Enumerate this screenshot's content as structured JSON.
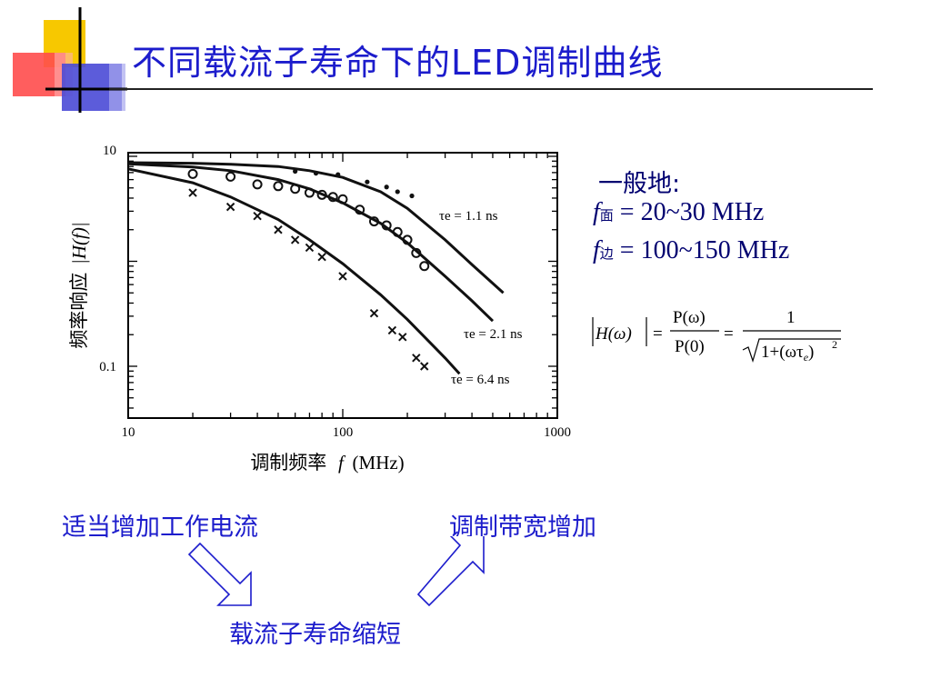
{
  "title": "不同载流子寿命下的LED调制曲线",
  "chart_data": {
    "type": "line",
    "xscale": "log",
    "yscale": "log",
    "xlim": [
      10,
      1000
    ],
    "ylim": [
      0.03,
      10
    ],
    "x_ticks": [
      "10",
      "100",
      "1000"
    ],
    "y_ticks": [
      "10",
      "0.1"
    ],
    "xlabel_prefix": "调制频率",
    "xlabel_var": "f",
    "xlabel_unit": "(MHz)",
    "ylabel_prefix": "频率响应",
    "ylabel_var": "|H(f)|",
    "series": [
      {
        "name": "τe = 1.1 ns",
        "tau": 1.1,
        "curve_x": [
          10,
          20,
          30,
          50,
          70,
          100,
          150,
          200,
          300,
          400,
          560
        ],
        "curve_y": [
          8.7,
          8.6,
          8.4,
          8.0,
          7.3,
          6.3,
          4.6,
          3.2,
          1.6,
          0.93,
          0.5
        ],
        "points_x": [
          60,
          75,
          95,
          130,
          160,
          180,
          210
        ],
        "points_y": [
          7.2,
          6.9,
          6.7,
          5.7,
          5.1,
          4.6,
          4.2
        ]
      },
      {
        "name": "τe = 2.1 ns",
        "tau": 2.1,
        "curve_x": [
          10,
          20,
          30,
          50,
          70,
          100,
          150,
          200,
          300,
          400,
          500
        ],
        "curve_y": [
          8.5,
          7.9,
          7.3,
          6.0,
          4.9,
          3.6,
          2.3,
          1.5,
          0.72,
          0.42,
          0.27
        ],
        "points_x": [
          20,
          30,
          40,
          50,
          60,
          70,
          80,
          90,
          100,
          120,
          140,
          160,
          180,
          200,
          220,
          240
        ],
        "points_y": [
          6.8,
          6.4,
          5.4,
          5.2,
          4.9,
          4.5,
          4.3,
          4.1,
          3.9,
          3.1,
          2.4,
          2.2,
          1.9,
          1.6,
          1.2,
          0.9
        ]
      },
      {
        "name": "τe = 6.4 ns",
        "tau": 6.4,
        "curve_x": [
          10,
          20,
          30,
          50,
          70,
          100,
          150,
          200,
          300,
          350
        ],
        "curve_y": [
          7.6,
          5.6,
          4.1,
          2.5,
          1.6,
          0.95,
          0.48,
          0.28,
          0.12,
          0.085
        ],
        "points_x": [
          20,
          30,
          40,
          50,
          60,
          70,
          80,
          100,
          140,
          170,
          190,
          220,
          240
        ],
        "points_y": [
          4.5,
          3.3,
          2.7,
          2.0,
          1.6,
          1.35,
          1.1,
          0.72,
          0.32,
          0.22,
          0.19,
          0.12,
          0.1
        ]
      }
    ]
  },
  "notes": {
    "heading": "一般地:",
    "f_face_var": "f",
    "f_face_sub": "面",
    "f_face_value": " = 20~30 MHz",
    "f_edge_var": "f",
    "f_edge_sub": "边",
    "f_edge_value": " = 100~150 MHz"
  },
  "formula": {
    "lhs": "H(ω)",
    "numerator": "P(ω)",
    "denominator": "P(0)",
    "rhs_numerator": "1",
    "rhs_radicand": "1+(ωτe)",
    "exponent": "2"
  },
  "flow": {
    "left": "适当增加工作电流",
    "right": "调制带宽增加",
    "bottom": "载流子寿命缩短"
  },
  "colors": {
    "title": "#1c1ccc",
    "text_blue": "#1c1ccc",
    "side_text": "#000070",
    "deco_yellow": "#f7c800",
    "deco_red": "#ff3b3b",
    "deco_blue": "#3b3bd9"
  }
}
